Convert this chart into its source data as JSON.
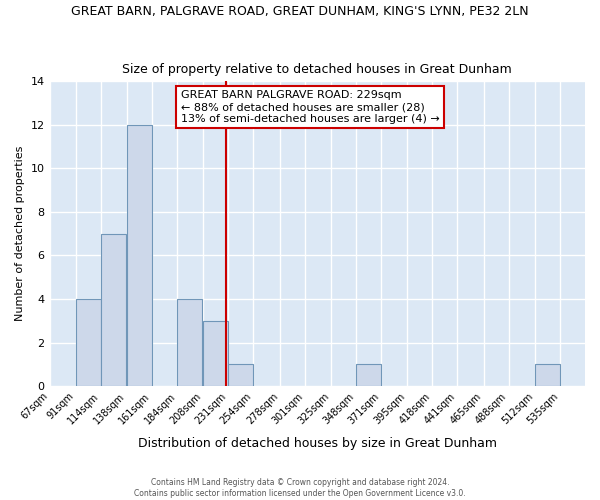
{
  "title": "GREAT BARN, PALGRAVE ROAD, GREAT DUNHAM, KING'S LYNN, PE32 2LN",
  "subtitle": "Size of property relative to detached houses in Great Dunham",
  "xlabel": "Distribution of detached houses by size in Great Dunham",
  "ylabel": "Number of detached properties",
  "bin_labels": [
    "67sqm",
    "91sqm",
    "114sqm",
    "138sqm",
    "161sqm",
    "184sqm",
    "208sqm",
    "231sqm",
    "254sqm",
    "278sqm",
    "301sqm",
    "325sqm",
    "348sqm",
    "371sqm",
    "395sqm",
    "418sqm",
    "441sqm",
    "465sqm",
    "488sqm",
    "512sqm",
    "535sqm"
  ],
  "bin_edges": [
    67,
    91,
    114,
    138,
    161,
    184,
    208,
    231,
    254,
    278,
    301,
    325,
    348,
    371,
    395,
    418,
    441,
    465,
    488,
    512,
    535
  ],
  "bin_width": 23,
  "counts": [
    0,
    4,
    7,
    12,
    0,
    4,
    3,
    1,
    0,
    0,
    0,
    0,
    1,
    0,
    0,
    0,
    0,
    0,
    0,
    1,
    0
  ],
  "bar_color": "#cdd8ea",
  "bar_edge_color": "#7096b8",
  "property_size": 229,
  "vline_color": "#cc0000",
  "annotation_line1": "GREAT BARN PALGRAVE ROAD: 229sqm",
  "annotation_line2": "← 88% of detached houses are smaller (28)",
  "annotation_line3": "13% of semi-detached houses are larger (4) →",
  "annotation_box_edge_color": "#cc0000",
  "ylim": [
    0,
    14
  ],
  "yticks": [
    0,
    2,
    4,
    6,
    8,
    10,
    12,
    14
  ],
  "plot_bg_color": "#dce8f5",
  "fig_bg_color": "#ffffff",
  "grid_color": "#ffffff",
  "footer_line1": "Contains HM Land Registry data © Crown copyright and database right 2024.",
  "footer_line2": "Contains public sector information licensed under the Open Government Licence v3.0."
}
